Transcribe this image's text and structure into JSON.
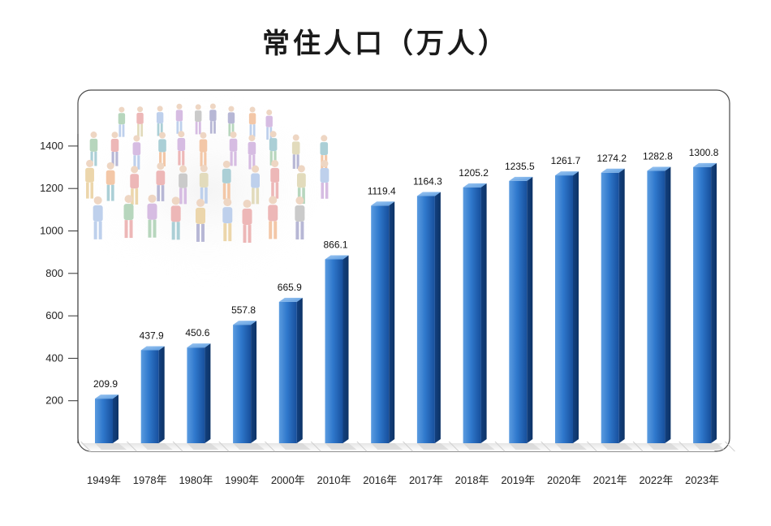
{
  "title": "常住人口（万人）",
  "chart_data": {
    "type": "bar",
    "title": "常住人口（万人）",
    "categories": [
      "1949年",
      "1978年",
      "1980年",
      "1990年",
      "2000年",
      "2010年",
      "2016年",
      "2017年",
      "2018年",
      "2019年",
      "2020年",
      "2021年",
      "2022年",
      "2023年"
    ],
    "values": [
      209.9,
      437.9,
      450.6,
      557.8,
      665.9,
      866.1,
      1119.4,
      1164.3,
      1205.2,
      1235.5,
      1261.7,
      1274.2,
      1282.8,
      1300.8
    ],
    "value_labels": [
      "209.9",
      "437.9",
      "450.6",
      "557.8",
      "665.9",
      "866.1",
      "1119.4",
      "1164.3",
      "1205.2",
      "1235.5",
      "1261.7",
      "1274.2",
      "1282.8",
      "1300.8"
    ],
    "yticks": [
      200,
      400,
      600,
      800,
      1000,
      1200,
      1400
    ],
    "ylim": [
      0,
      1500
    ],
    "bar_color": "#1f63b5",
    "grid": false,
    "decorative_image": "crowd-of-people"
  }
}
